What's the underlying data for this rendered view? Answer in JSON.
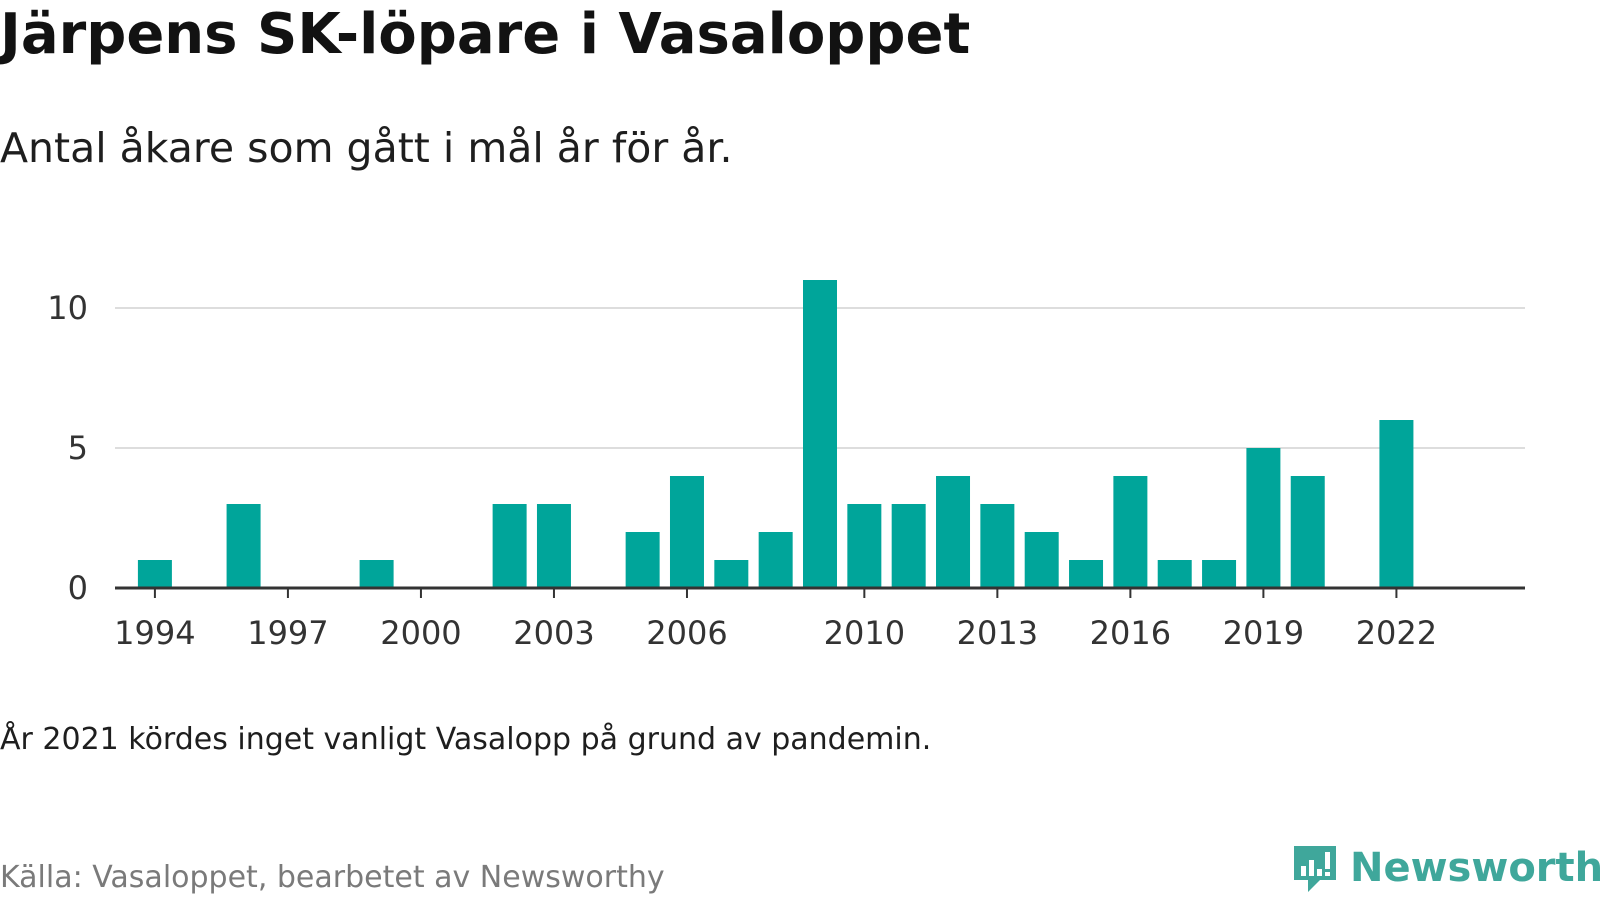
{
  "header": {
    "title": "Järpens SK-löpare i Vasaloppet",
    "subtitle": "Antal åkare som gått i mål år för år."
  },
  "footer": {
    "note": "År 2021 kördes inget vanligt Vasalopp på grund av pandemin.",
    "source": "Källa: Vasaloppet, bearbetet av Newsworthy",
    "logo_text": "Newsworthy",
    "logo_icon": "newsworthy-logo-icon"
  },
  "colors": {
    "bar": "#00a59a",
    "grid": "#dddddd",
    "axis": "#333333",
    "tick_text": "#333333",
    "logo": "#3fa79b"
  },
  "chart_data": {
    "type": "bar",
    "title": "Järpens SK-löpare i Vasaloppet",
    "subtitle": "Antal åkare som gått i mål år för år.",
    "xlabel": "",
    "ylabel": "",
    "ylim": [
      0,
      11
    ],
    "yticks": [
      0,
      5,
      10
    ],
    "xticks": [
      1994,
      1997,
      2000,
      2003,
      2006,
      2010,
      2013,
      2016,
      2019,
      2022
    ],
    "grid": true,
    "legend": "none",
    "x": [
      1994,
      1996,
      1999,
      2002,
      2003,
      2005,
      2006,
      2007,
      2008,
      2009,
      2010,
      2011,
      2012,
      2013,
      2014,
      2015,
      2016,
      2017,
      2018,
      2019,
      2020,
      2022
    ],
    "values": [
      1,
      3,
      1,
      3,
      3,
      2,
      4,
      1,
      2,
      11,
      3,
      3,
      4,
      3,
      2,
      1,
      4,
      1,
      1,
      5,
      4,
      6
    ]
  }
}
